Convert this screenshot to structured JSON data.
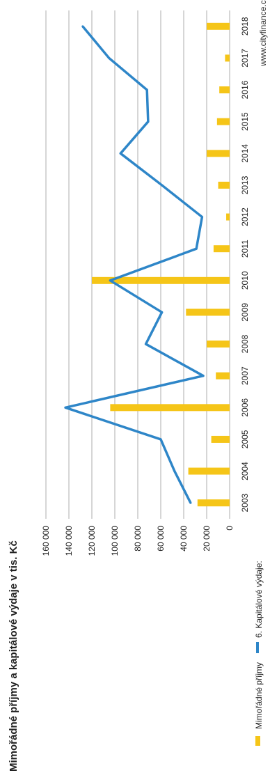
{
  "chart_data": {
    "type": "bar+line",
    "title": "Mimořádné příjmy a kapitálové výdaje v tis. Kč",
    "source": "www.cityfinance.cz",
    "categories": [
      "2003",
      "2004",
      "2005",
      "2006",
      "2007",
      "2008",
      "2009",
      "2010",
      "2011",
      "2012",
      "2013",
      "2014",
      "2015",
      "2016",
      "2017",
      "2018"
    ],
    "series": [
      {
        "name": "Mimořádné příjmy",
        "type": "bar",
        "color": "#F5C518",
        "values": [
          28000,
          36000,
          16000,
          104000,
          12000,
          20000,
          38000,
          120000,
          14000,
          3000,
          10000,
          20000,
          11000,
          9000,
          4000,
          20000
        ]
      },
      {
        "name": "6. Kapitálové výdaje:",
        "type": "line",
        "color": "#2E86C8",
        "values": [
          34000,
          48000,
          60000,
          143000,
          23000,
          73000,
          59000,
          104000,
          29000,
          24000,
          59000,
          95000,
          71000,
          72000,
          105000,
          128000
        ]
      }
    ],
    "ylim": [
      0,
      160000
    ],
    "yticks": [
      "0",
      "20 000",
      "40 000",
      "60 000",
      "80 000",
      "100 000",
      "120 000",
      "140 000",
      "160 000"
    ],
    "grid": true,
    "legend": "bottom"
  }
}
